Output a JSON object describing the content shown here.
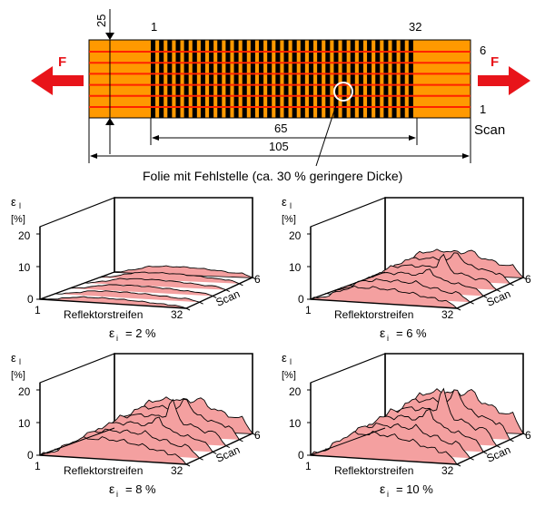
{
  "top": {
    "dim_25": "25",
    "left_index": "1",
    "right_index": "32",
    "scan_top": "6",
    "scan_bottom": "1",
    "scan_label": "Scan",
    "force_left": "F",
    "force_right": "F",
    "dim_65": "65",
    "dim_105": "105",
    "caption": "Folie mit Fehlstelle (ca. 30 % geringere Dicke)",
    "stripe_count": 32,
    "scan_count": 6
  },
  "panel_labels": {
    "epsilon": "ε",
    "epsilon_sub": "l",
    "unit": "[%]",
    "tick_20": "20",
    "tick_10": "10",
    "tick_0": "0",
    "x_start": "1",
    "x_label": "Reflektorstreifen",
    "x_end": "32",
    "scan_label": "Scan",
    "scan_end": "6"
  },
  "panels": [
    {
      "caption_eps": "ε",
      "caption_sub": "i",
      "caption_value": "= 2  %",
      "level": 2
    },
    {
      "caption_eps": "ε",
      "caption_sub": "i",
      "caption_value": "= 6  %",
      "level": 6
    },
    {
      "caption_eps": "ε",
      "caption_sub": "i",
      "caption_value": "= 8  %",
      "level": 8
    },
    {
      "caption_eps": "ε",
      "caption_sub": "i",
      "caption_value": "= 10 %",
      "level": 10
    }
  ],
  "colors": {
    "orange": "#FF9900",
    "stripe": "#000000",
    "scan_line": "#FF2200",
    "arrow": "#E8141A",
    "surface_fill": "#F4A0A0",
    "surface_line": "#000000"
  }
}
